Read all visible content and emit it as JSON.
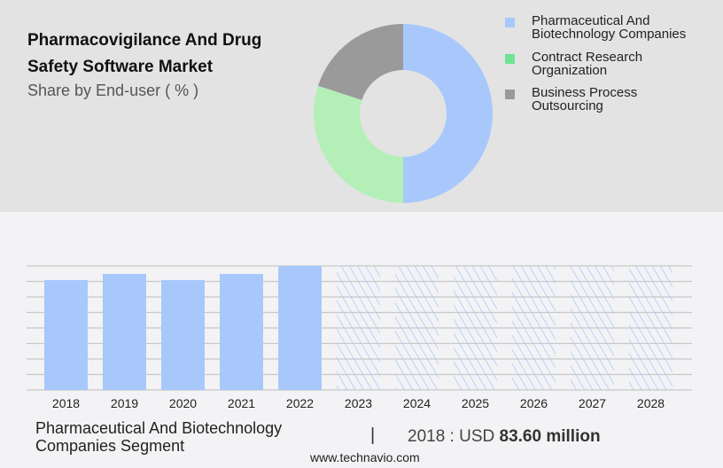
{
  "header": {
    "title_line1": "Pharmacovigilance And Drug",
    "title_line2": "Safety Software Market",
    "subtitle": "Share by End-user ( % )"
  },
  "chart_data": [
    {
      "type": "pie",
      "title": "Share by End-user ( % )",
      "donut": true,
      "slices": [
        {
          "label": "Pharmaceutical And Biotechnology Companies",
          "value": 50,
          "color": "#a8c8fc"
        },
        {
          "label": "Contract Research Organization",
          "value": 30,
          "color": "#b5efb8"
        },
        {
          "label": "Business Process Outsourcing",
          "value": 20,
          "color": "#9a9a9a"
        }
      ],
      "legend_swatch_colors": [
        "#a8c8fc",
        "#6fe394",
        "#9a9a9a"
      ],
      "legend_placement": "right"
    },
    {
      "type": "bar",
      "categories": [
        "2018",
        "2019",
        "2020",
        "2021",
        "2022",
        "2023",
        "2024",
        "2025",
        "2026",
        "2027",
        "2028"
      ],
      "values": [
        83.6,
        88.3,
        83.6,
        88.3,
        94.4,
        null,
        null,
        null,
        null,
        null,
        null
      ],
      "forecast": [
        false,
        false,
        false,
        false,
        false,
        true,
        true,
        true,
        true,
        true,
        true
      ],
      "ylim": [
        0,
        94.4
      ],
      "grid": true,
      "bar_color": "#a8c8fc"
    }
  ],
  "footer": {
    "segment_line1": "Pharmaceutical And Biotechnology",
    "segment_line2": "Companies Segment",
    "separator": "|",
    "value_prefix": "2018 : USD",
    "value_bold": "83.60 million",
    "website": "www.technavio.com"
  }
}
